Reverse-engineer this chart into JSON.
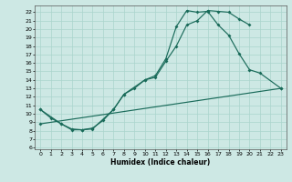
{
  "xlabel": "Humidex (Indice chaleur)",
  "bg_color": "#cde8e4",
  "grid_color": "#aad4cc",
  "line_color": "#1a6b5a",
  "xlim": [
    -0.5,
    23.5
  ],
  "ylim": [
    5.8,
    22.8
  ],
  "xticks": [
    0,
    1,
    2,
    3,
    4,
    5,
    6,
    7,
    8,
    9,
    10,
    11,
    12,
    13,
    14,
    15,
    16,
    17,
    18,
    19,
    20,
    21,
    22,
    23
  ],
  "yticks": [
    6,
    7,
    8,
    9,
    10,
    11,
    12,
    13,
    14,
    15,
    16,
    17,
    18,
    19,
    20,
    21,
    22
  ],
  "line1_x": [
    0,
    1,
    2,
    3,
    4,
    5,
    7,
    8,
    10,
    11,
    12,
    13,
    14,
    15,
    16,
    17,
    18,
    19,
    20
  ],
  "line1_y": [
    10.5,
    9.5,
    8.8,
    8.2,
    8.1,
    8.2,
    10.5,
    12.3,
    14.0,
    14.3,
    16.2,
    18.0,
    20.5,
    21.0,
    22.2,
    22.1,
    22.0,
    21.2,
    20.5
  ],
  "line2_x": [
    0,
    2,
    3,
    4,
    5,
    6,
    7,
    8,
    9,
    10,
    11,
    12,
    13,
    14,
    15,
    16,
    17,
    18,
    19,
    20,
    21,
    23
  ],
  "line2_y": [
    10.5,
    8.8,
    8.1,
    8.1,
    8.3,
    9.2,
    10.5,
    12.3,
    13.0,
    14.0,
    14.5,
    16.5,
    20.3,
    22.2,
    22.0,
    22.1,
    20.5,
    19.3,
    17.1,
    15.2,
    14.8,
    13.0
  ],
  "line3_x": [
    0,
    23
  ],
  "line3_y": [
    8.8,
    13.0
  ]
}
